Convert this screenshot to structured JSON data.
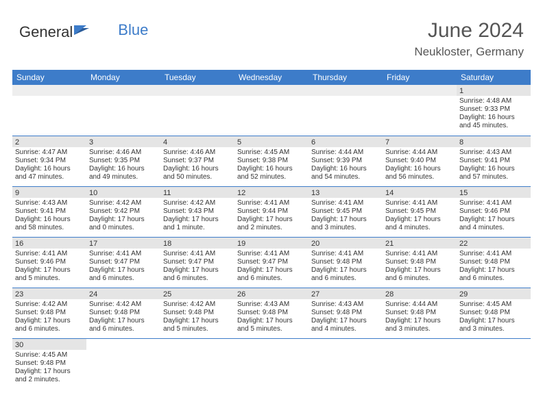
{
  "logo": {
    "text1": "General",
    "text2": "Blue"
  },
  "header": {
    "title": "June 2024",
    "subtitle": "Neukloster, Germany"
  },
  "colors": {
    "header_bg": "#3d7cc9",
    "header_text": "#ffffff",
    "daynum_bg": "#e5e5e5",
    "empty_bg": "#eeeeee",
    "border": "#3d7cc9",
    "text": "#333333"
  },
  "calendar": {
    "day_headers": [
      "Sunday",
      "Monday",
      "Tuesday",
      "Wednesday",
      "Thursday",
      "Friday",
      "Saturday"
    ],
    "weeks": [
      [
        {
          "day": "",
          "sunrise": "",
          "sunset": "",
          "daylight": ""
        },
        {
          "day": "",
          "sunrise": "",
          "sunset": "",
          "daylight": ""
        },
        {
          "day": "",
          "sunrise": "",
          "sunset": "",
          "daylight": ""
        },
        {
          "day": "",
          "sunrise": "",
          "sunset": "",
          "daylight": ""
        },
        {
          "day": "",
          "sunrise": "",
          "sunset": "",
          "daylight": ""
        },
        {
          "day": "",
          "sunrise": "",
          "sunset": "",
          "daylight": ""
        },
        {
          "day": "1",
          "sunrise": "Sunrise: 4:48 AM",
          "sunset": "Sunset: 9:33 PM",
          "daylight": "Daylight: 16 hours and 45 minutes."
        }
      ],
      [
        {
          "day": "2",
          "sunrise": "Sunrise: 4:47 AM",
          "sunset": "Sunset: 9:34 PM",
          "daylight": "Daylight: 16 hours and 47 minutes."
        },
        {
          "day": "3",
          "sunrise": "Sunrise: 4:46 AM",
          "sunset": "Sunset: 9:35 PM",
          "daylight": "Daylight: 16 hours and 49 minutes."
        },
        {
          "day": "4",
          "sunrise": "Sunrise: 4:46 AM",
          "sunset": "Sunset: 9:37 PM",
          "daylight": "Daylight: 16 hours and 50 minutes."
        },
        {
          "day": "5",
          "sunrise": "Sunrise: 4:45 AM",
          "sunset": "Sunset: 9:38 PM",
          "daylight": "Daylight: 16 hours and 52 minutes."
        },
        {
          "day": "6",
          "sunrise": "Sunrise: 4:44 AM",
          "sunset": "Sunset: 9:39 PM",
          "daylight": "Daylight: 16 hours and 54 minutes."
        },
        {
          "day": "7",
          "sunrise": "Sunrise: 4:44 AM",
          "sunset": "Sunset: 9:40 PM",
          "daylight": "Daylight: 16 hours and 56 minutes."
        },
        {
          "day": "8",
          "sunrise": "Sunrise: 4:43 AM",
          "sunset": "Sunset: 9:41 PM",
          "daylight": "Daylight: 16 hours and 57 minutes."
        }
      ],
      [
        {
          "day": "9",
          "sunrise": "Sunrise: 4:43 AM",
          "sunset": "Sunset: 9:41 PM",
          "daylight": "Daylight: 16 hours and 58 minutes."
        },
        {
          "day": "10",
          "sunrise": "Sunrise: 4:42 AM",
          "sunset": "Sunset: 9:42 PM",
          "daylight": "Daylight: 17 hours and 0 minutes."
        },
        {
          "day": "11",
          "sunrise": "Sunrise: 4:42 AM",
          "sunset": "Sunset: 9:43 PM",
          "daylight": "Daylight: 17 hours and 1 minute."
        },
        {
          "day": "12",
          "sunrise": "Sunrise: 4:41 AM",
          "sunset": "Sunset: 9:44 PM",
          "daylight": "Daylight: 17 hours and 2 minutes."
        },
        {
          "day": "13",
          "sunrise": "Sunrise: 4:41 AM",
          "sunset": "Sunset: 9:45 PM",
          "daylight": "Daylight: 17 hours and 3 minutes."
        },
        {
          "day": "14",
          "sunrise": "Sunrise: 4:41 AM",
          "sunset": "Sunset: 9:45 PM",
          "daylight": "Daylight: 17 hours and 4 minutes."
        },
        {
          "day": "15",
          "sunrise": "Sunrise: 4:41 AM",
          "sunset": "Sunset: 9:46 PM",
          "daylight": "Daylight: 17 hours and 4 minutes."
        }
      ],
      [
        {
          "day": "16",
          "sunrise": "Sunrise: 4:41 AM",
          "sunset": "Sunset: 9:46 PM",
          "daylight": "Daylight: 17 hours and 5 minutes."
        },
        {
          "day": "17",
          "sunrise": "Sunrise: 4:41 AM",
          "sunset": "Sunset: 9:47 PM",
          "daylight": "Daylight: 17 hours and 6 minutes."
        },
        {
          "day": "18",
          "sunrise": "Sunrise: 4:41 AM",
          "sunset": "Sunset: 9:47 PM",
          "daylight": "Daylight: 17 hours and 6 minutes."
        },
        {
          "day": "19",
          "sunrise": "Sunrise: 4:41 AM",
          "sunset": "Sunset: 9:47 PM",
          "daylight": "Daylight: 17 hours and 6 minutes."
        },
        {
          "day": "20",
          "sunrise": "Sunrise: 4:41 AM",
          "sunset": "Sunset: 9:48 PM",
          "daylight": "Daylight: 17 hours and 6 minutes."
        },
        {
          "day": "21",
          "sunrise": "Sunrise: 4:41 AM",
          "sunset": "Sunset: 9:48 PM",
          "daylight": "Daylight: 17 hours and 6 minutes."
        },
        {
          "day": "22",
          "sunrise": "Sunrise: 4:41 AM",
          "sunset": "Sunset: 9:48 PM",
          "daylight": "Daylight: 17 hours and 6 minutes."
        }
      ],
      [
        {
          "day": "23",
          "sunrise": "Sunrise: 4:42 AM",
          "sunset": "Sunset: 9:48 PM",
          "daylight": "Daylight: 17 hours and 6 minutes."
        },
        {
          "day": "24",
          "sunrise": "Sunrise: 4:42 AM",
          "sunset": "Sunset: 9:48 PM",
          "daylight": "Daylight: 17 hours and 6 minutes."
        },
        {
          "day": "25",
          "sunrise": "Sunrise: 4:42 AM",
          "sunset": "Sunset: 9:48 PM",
          "daylight": "Daylight: 17 hours and 5 minutes."
        },
        {
          "day": "26",
          "sunrise": "Sunrise: 4:43 AM",
          "sunset": "Sunset: 9:48 PM",
          "daylight": "Daylight: 17 hours and 5 minutes."
        },
        {
          "day": "27",
          "sunrise": "Sunrise: 4:43 AM",
          "sunset": "Sunset: 9:48 PM",
          "daylight": "Daylight: 17 hours and 4 minutes."
        },
        {
          "day": "28",
          "sunrise": "Sunrise: 4:44 AM",
          "sunset": "Sunset: 9:48 PM",
          "daylight": "Daylight: 17 hours and 3 minutes."
        },
        {
          "day": "29",
          "sunrise": "Sunrise: 4:45 AM",
          "sunset": "Sunset: 9:48 PM",
          "daylight": "Daylight: 17 hours and 3 minutes."
        }
      ],
      [
        {
          "day": "30",
          "sunrise": "Sunrise: 4:45 AM",
          "sunset": "Sunset: 9:48 PM",
          "daylight": "Daylight: 17 hours and 2 minutes."
        },
        {
          "day": "",
          "sunrise": "",
          "sunset": "",
          "daylight": ""
        },
        {
          "day": "",
          "sunrise": "",
          "sunset": "",
          "daylight": ""
        },
        {
          "day": "",
          "sunrise": "",
          "sunset": "",
          "daylight": ""
        },
        {
          "day": "",
          "sunrise": "",
          "sunset": "",
          "daylight": ""
        },
        {
          "day": "",
          "sunrise": "",
          "sunset": "",
          "daylight": ""
        },
        {
          "day": "",
          "sunrise": "",
          "sunset": "",
          "daylight": ""
        }
      ]
    ]
  }
}
